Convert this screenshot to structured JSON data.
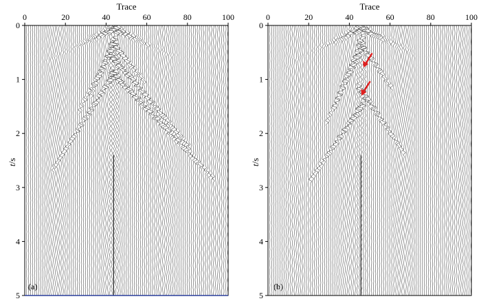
{
  "chart_data": [
    {
      "type": "seismic-wiggle",
      "panel_label": "(a)",
      "xlabel": "Trace",
      "ylabel": "t/s",
      "ylabel_italic": "t",
      "ylabel_unit": "/s",
      "xlim": [
        0,
        100
      ],
      "ylim": [
        0,
        5
      ],
      "x_ticks": [
        "0",
        "20",
        "40",
        "60",
        "80",
        "100"
      ],
      "y_ticks": [
        "0",
        "1",
        "2",
        "3",
        "4",
        "5"
      ],
      "trace_count": 100,
      "bottom_line_color": "#2a3f9c",
      "source_trace": 44,
      "dip_events": [
        {
          "trace_from": 44,
          "trace_to": 34,
          "t_from": 0.3,
          "t_to": 1.2
        },
        {
          "trace_from": 44,
          "trace_to": 28,
          "t_from": 0.4,
          "t_to": 1.5
        },
        {
          "trace_from": 44,
          "trace_to": 58,
          "t_from": 0.35,
          "t_to": 1.0
        },
        {
          "trace_from": 44,
          "trace_to": 80,
          "t_from": 0.6,
          "t_to": 2.2
        },
        {
          "trace_from": 44,
          "trace_to": 92,
          "t_from": 0.9,
          "t_to": 2.8
        },
        {
          "trace_from": 44,
          "trace_to": 15,
          "t_from": 0.9,
          "t_to": 2.6
        }
      ]
    },
    {
      "type": "seismic-wiggle",
      "panel_label": "(b)",
      "xlabel": "Trace",
      "ylabel": "t/s",
      "ylabel_italic": "t",
      "ylabel_unit": "/s",
      "xlim": [
        0,
        100
      ],
      "ylim": [
        0,
        5
      ],
      "x_ticks": [
        "0",
        "20",
        "40",
        "60",
        "80",
        "100"
      ],
      "y_ticks": [
        "0",
        "1",
        "2",
        "3",
        "4",
        "5"
      ],
      "trace_count": 100,
      "source_trace": 46,
      "gaps": [
        [
          73,
          93
        ]
      ],
      "dip_events": [
        {
          "trace_from": 46,
          "trace_to": 34,
          "t_from": 0.3,
          "t_to": 1.4
        },
        {
          "trace_from": 46,
          "trace_to": 30,
          "t_from": 0.45,
          "t_to": 1.7
        },
        {
          "trace_from": 46,
          "trace_to": 60,
          "t_from": 0.35,
          "t_to": 1.1
        },
        {
          "trace_from": 46,
          "trace_to": 66,
          "t_from": 1.2,
          "t_to": 2.3
        },
        {
          "trace_from": 46,
          "trace_to": 22,
          "t_from": 1.5,
          "t_to": 2.8
        }
      ],
      "annotations": [
        {
          "kind": "arrow",
          "color": "#e02020",
          "points_to_trace": 47,
          "points_to_t": 0.78
        },
        {
          "kind": "arrow",
          "color": "#e02020",
          "points_to_trace": 46,
          "points_to_t": 1.3
        }
      ]
    }
  ]
}
